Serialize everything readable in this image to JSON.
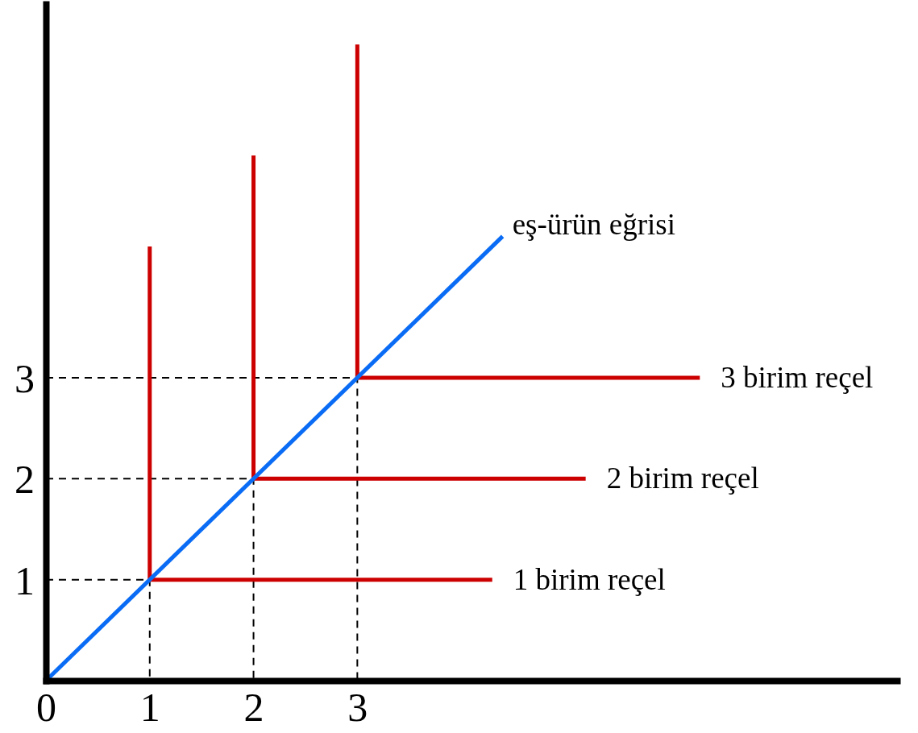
{
  "chart_data": {
    "type": "line",
    "xlim": [
      0,
      8.2
    ],
    "ylim": [
      0,
      6.7
    ],
    "xticks": [
      0,
      1,
      2,
      3
    ],
    "yticks": [
      1,
      2,
      3
    ],
    "series": [
      {
        "color": "#000000",
        "line_style": "dashed",
        "x": [
          0,
          1,
          1
        ],
        "values": [
          1,
          1,
          0
        ]
      },
      {
        "color": "#000000",
        "line_style": "dashed",
        "x": [
          0,
          2,
          2
        ],
        "values": [
          2,
          2,
          0
        ]
      },
      {
        "color": "#000000",
        "line_style": "dashed",
        "x": [
          0,
          3,
          3
        ],
        "values": [
          3,
          3,
          0
        ]
      },
      {
        "name": "1 birim reçel",
        "color": "#cc0000",
        "x": [
          1,
          1,
          4.3
        ],
        "values": [
          4.3,
          1,
          1
        ]
      },
      {
        "name": "2 birim reçel",
        "color": "#cc0000",
        "x": [
          2,
          2,
          5.2
        ],
        "values": [
          5.2,
          2,
          2
        ]
      },
      {
        "name": "3 birim reçel",
        "color": "#cc0000",
        "x": [
          3,
          3,
          6.3
        ],
        "values": [
          6.3,
          3,
          3
        ]
      },
      {
        "name": "eş-ürün eğrisi",
        "color": "#0a6cf5",
        "x": [
          0,
          4.4
        ],
        "values": [
          0,
          4.4
        ]
      }
    ]
  }
}
